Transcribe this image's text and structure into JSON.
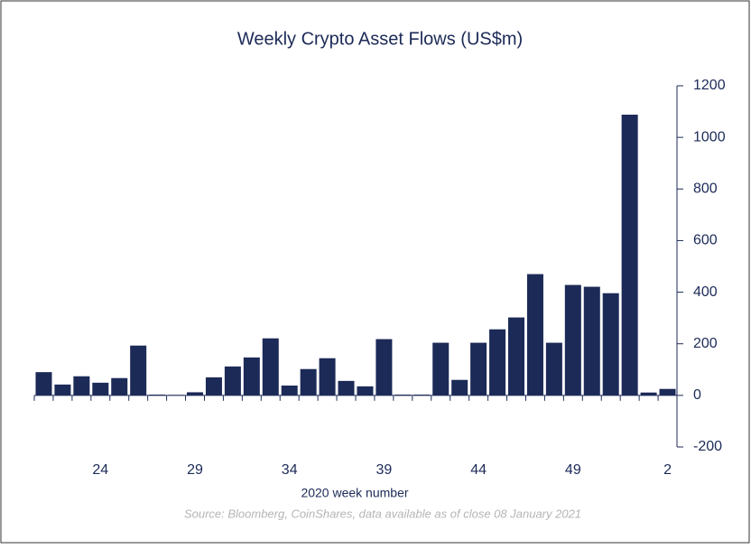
{
  "chart_data": {
    "type": "bar",
    "title": "Weekly Crypto Asset Flows (US$m)",
    "x_label": "2020 week number",
    "source": "Source: Bloomberg, CoinShares, data available as of close 08 January 2021",
    "categories": [
      null,
      null,
      null,
      24,
      null,
      null,
      null,
      null,
      29,
      null,
      null,
      null,
      null,
      34,
      null,
      null,
      null,
      null,
      39,
      null,
      null,
      null,
      null,
      44,
      null,
      null,
      null,
      null,
      49,
      null,
      null,
      null,
      null,
      2
    ],
    "values": [
      90,
      42,
      74,
      49,
      67,
      193,
      3,
      2,
      12,
      70,
      112,
      147,
      221,
      38,
      102,
      144,
      56,
      35,
      218,
      3,
      3,
      204,
      60,
      204,
      256,
      302,
      470,
      204,
      428,
      421,
      396,
      1088,
      11,
      25
    ],
    "color": "#1c2a57",
    "ylim": [
      -200,
      1200
    ],
    "yticks": [
      -200,
      0,
      200,
      400,
      600,
      800,
      1000,
      1200
    ],
    "y_axis_side": "right"
  }
}
